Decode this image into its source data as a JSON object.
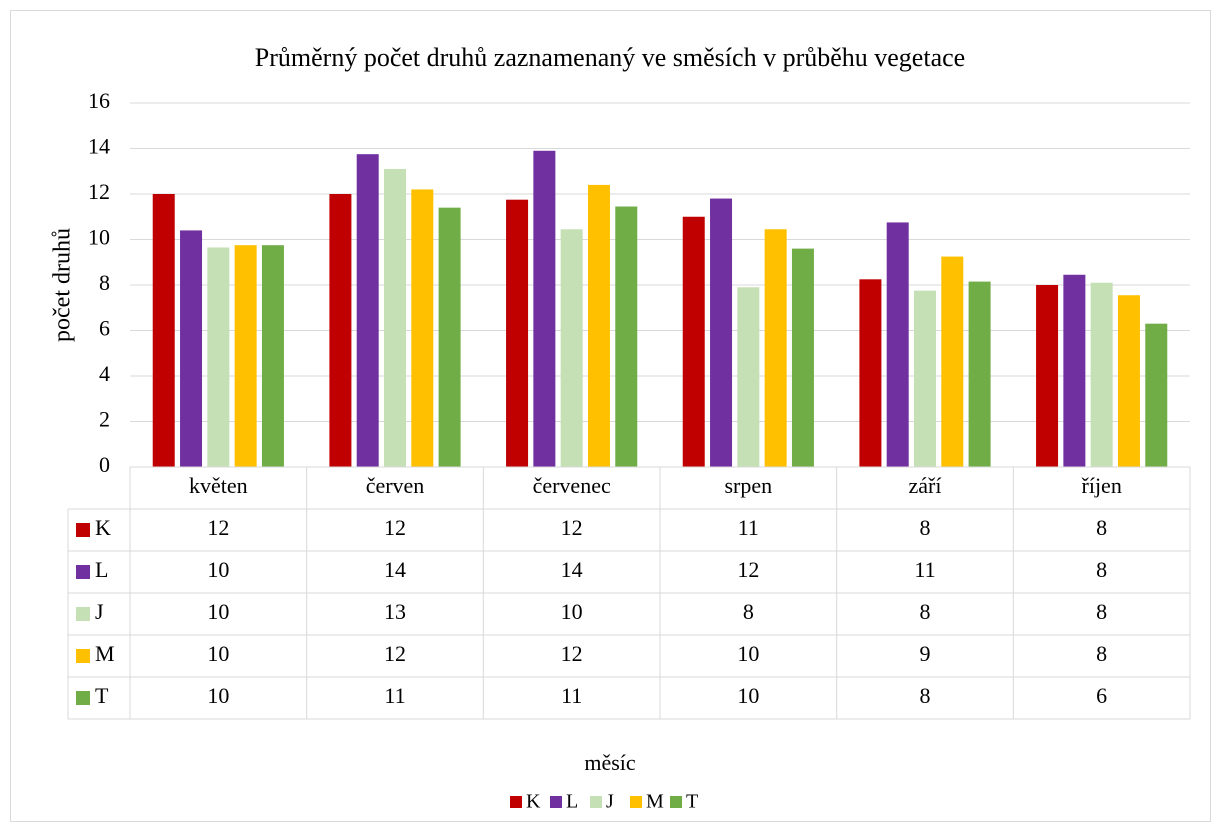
{
  "chart_data": {
    "type": "bar",
    "title": "Průměrný počet druhů zaznamenaný ve směsích v průběhu vegetace",
    "y_label": "počet druhů",
    "x_label": "měsíc",
    "categories": [
      "květen",
      "červen",
      "červenec",
      "srpen",
      "září",
      "říjen"
    ],
    "series": [
      {
        "name": "K",
        "color": "#c00000",
        "values": [
          12,
          12,
          11.75,
          11,
          8.25,
          8
        ],
        "value_labels": [
          "12",
          "12",
          "12",
          "11",
          "8",
          "8"
        ]
      },
      {
        "name": "L",
        "color": "#7030a0",
        "values": [
          10.4,
          13.75,
          13.9,
          11.8,
          10.75,
          8.45
        ],
        "value_labels": [
          "10",
          "14",
          "14",
          "12",
          "11",
          "8"
        ]
      },
      {
        "name": "J",
        "color": "#c5e0b4",
        "values": [
          9.65,
          13.1,
          10.45,
          7.9,
          7.75,
          8.1
        ],
        "value_labels": [
          "10",
          "13",
          "10",
          "8",
          "8",
          "8"
        ]
      },
      {
        "name": "M",
        "color": "#ffc000",
        "values": [
          9.75,
          12.2,
          12.4,
          10.45,
          9.25,
          7.55
        ],
        "value_labels": [
          "10",
          "12",
          "12",
          "10",
          "9",
          "8"
        ]
      },
      {
        "name": "T",
        "color": "#70ad47",
        "values": [
          9.75,
          11.4,
          11.45,
          9.6,
          8.15,
          6.3
        ],
        "value_labels": [
          "10",
          "11",
          "11",
          "10",
          "8",
          "6"
        ]
      }
    ],
    "ylim": [
      0,
      16
    ],
    "yticks": [
      0,
      2,
      4,
      6,
      8,
      10,
      12,
      14,
      16
    ],
    "grid": true,
    "legend": "bottom"
  }
}
